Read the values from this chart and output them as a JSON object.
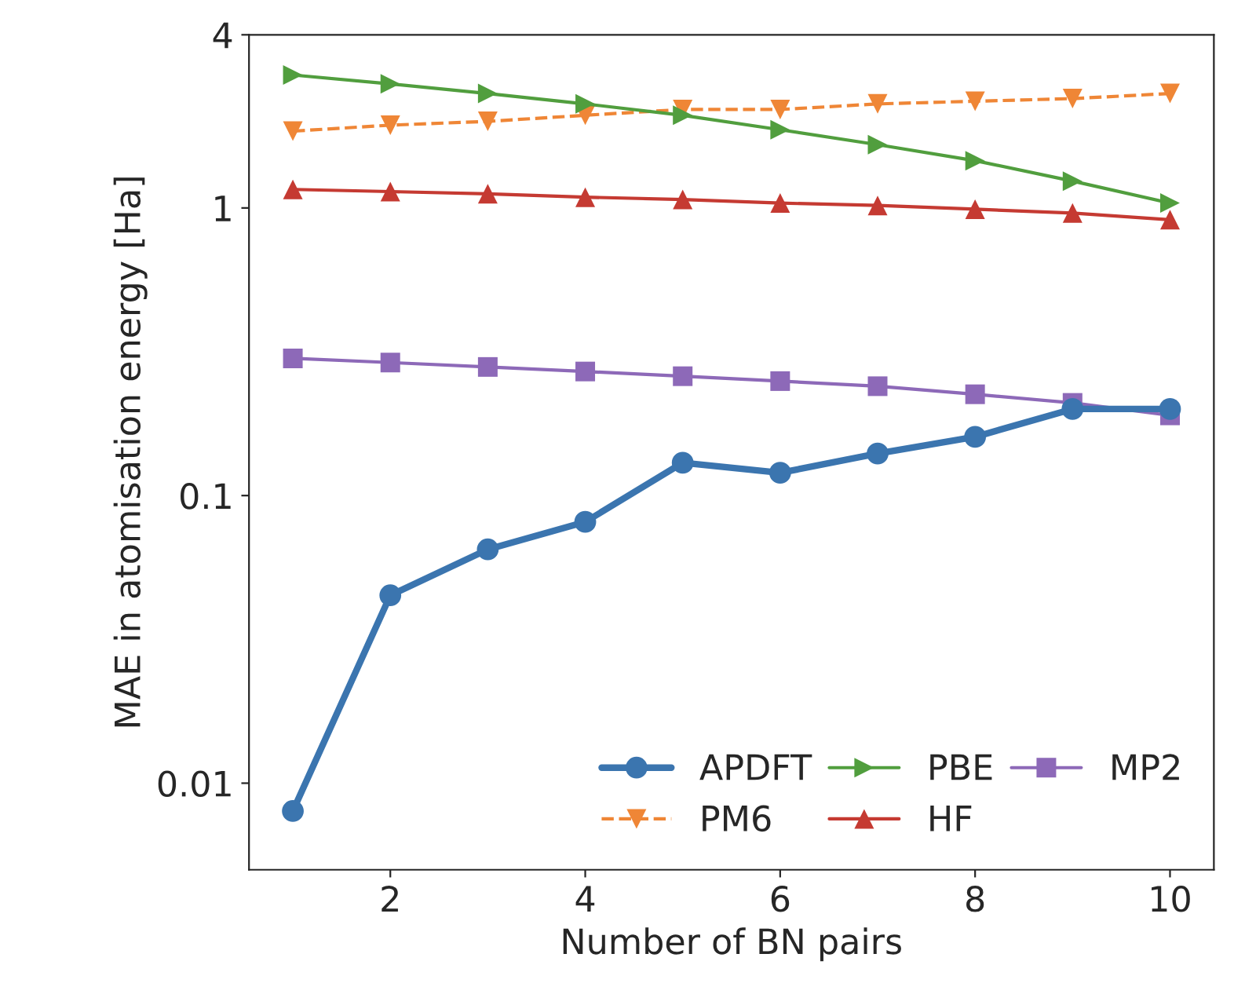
{
  "chart_data": {
    "type": "line",
    "xlabel": "Number of BN pairs",
    "ylabel": "MAE in atomisation energy [Ha]",
    "x": [
      1,
      2,
      3,
      4,
      5,
      6,
      7,
      8,
      9,
      10
    ],
    "series": [
      {
        "name": "APDFT",
        "color": "#3b75af",
        "marker": "circle",
        "line_style": "solid",
        "values": [
          0.008,
          0.045,
          0.065,
          0.081,
          0.13,
          0.12,
          0.14,
          0.16,
          0.2,
          0.2
        ]
      },
      {
        "name": "PM6",
        "color": "#ef8636",
        "marker": "triangle_down",
        "line_style": "dashed",
        "values": [
          1.85,
          1.94,
          2.0,
          2.1,
          2.2,
          2.2,
          2.3,
          2.35,
          2.4,
          2.5
        ]
      },
      {
        "name": "PBE",
        "color": "#519e3e",
        "marker": "triangle_right",
        "line_style": "solid",
        "values": [
          2.9,
          2.7,
          2.5,
          2.3,
          2.1,
          1.87,
          1.66,
          1.46,
          1.24,
          1.04
        ]
      },
      {
        "name": "HF",
        "color": "#c53a32",
        "marker": "triangle",
        "line_style": "solid",
        "values": [
          1.16,
          1.14,
          1.12,
          1.09,
          1.07,
          1.04,
          1.02,
          0.99,
          0.96,
          0.91
        ]
      },
      {
        "name": "MP2",
        "color": "#8d69b8",
        "marker": "square",
        "line_style": "solid",
        "values": [
          0.3,
          0.29,
          0.28,
          0.27,
          0.26,
          0.25,
          0.24,
          0.225,
          0.21,
          0.19
        ]
      }
    ],
    "log": "y",
    "xlim": [
      0.55,
      10.45
    ],
    "ylim": [
      0.005,
      4
    ],
    "xticks": [
      2,
      4,
      6,
      8,
      10
    ],
    "yticks": [
      0.01,
      0.1,
      1,
      4
    ],
    "grid": false,
    "legend": "bottom right"
  }
}
